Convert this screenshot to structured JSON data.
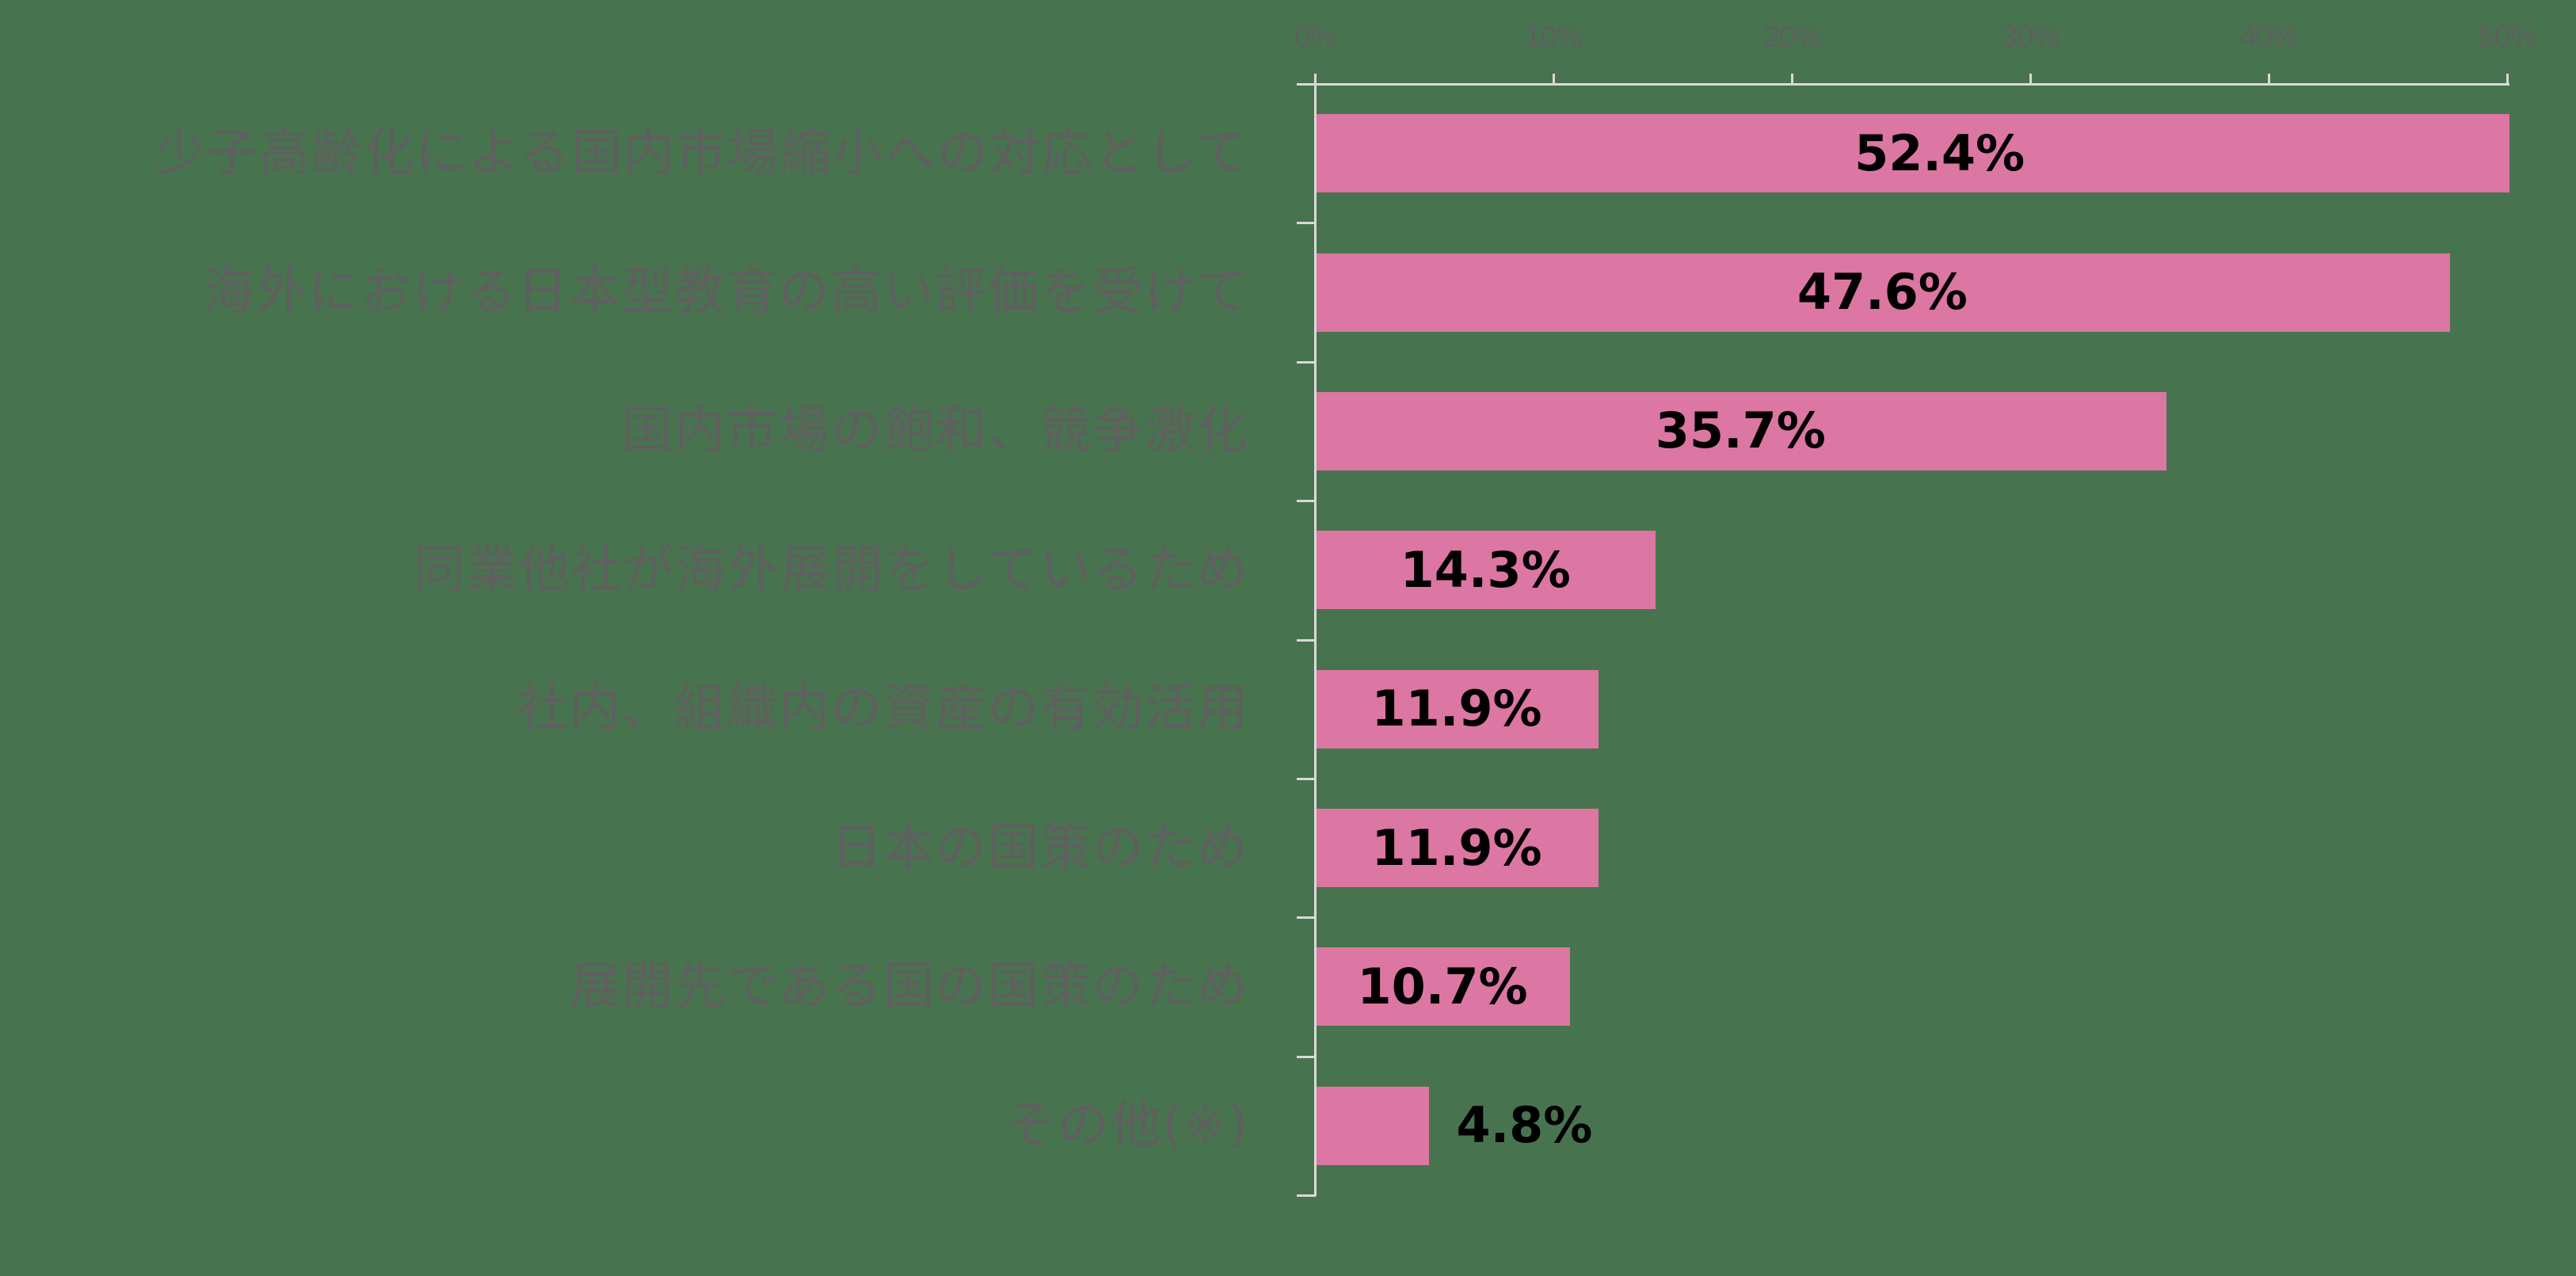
{
  "chart_data": {
    "type": "bar",
    "orientation": "horizontal",
    "title": "",
    "xlabel": "",
    "ylabel": "",
    "xlim": [
      0,
      50
    ],
    "x_ticks": [
      "0%",
      "10%",
      "20%",
      "30%",
      "40%",
      "50%"
    ],
    "grid": false,
    "legend": null,
    "categories": [
      "少子高齢化による国内市場縮小への対応として",
      "海外における日本型教育の高い評価を受けて",
      "国内市場の飽和、競争激化",
      "同業他社が海外展開をしているため",
      "社内、組織内の資産の有効活用",
      "日本の国策のため",
      "展開先である国の国策のため",
      "その他(※)"
    ],
    "values": [
      52.4,
      47.6,
      35.7,
      14.3,
      11.9,
      11.9,
      10.7,
      4.8
    ],
    "value_labels": [
      "52.4%",
      "47.6%",
      "35.7%",
      "14.3%",
      "11.9%",
      "11.9%",
      "10.7%",
      "4.8%"
    ],
    "colors": {
      "bar": "#dc76a2",
      "background": "#48734f",
      "axis": "#d9d9d9",
      "label_text": "#5f5f5f",
      "value_text": "#000000"
    }
  }
}
